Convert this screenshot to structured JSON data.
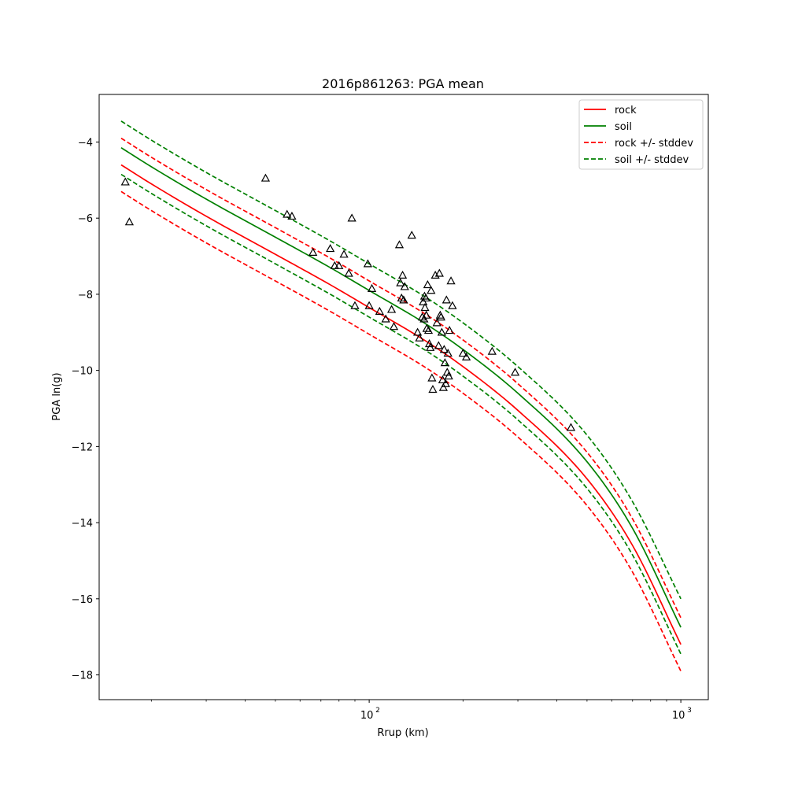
{
  "chart_data": {
    "type": "scatter",
    "title": "2016p861263: PGA mean",
    "xlabel": "Rrup (km)",
    "ylabel": "PGA ln(g)",
    "xscale": "log",
    "xlim": [
      13.6,
      1225
    ],
    "ylim": [
      -18.65,
      -2.75
    ],
    "yticks": [
      -4,
      -6,
      -8,
      -10,
      -12,
      -14,
      -16,
      -18
    ],
    "yticklabels": [
      "−4",
      "−6",
      "−8",
      "−10",
      "−12",
      "−14",
      "−16",
      "−18"
    ],
    "xticks": [
      100,
      1000
    ],
    "xticklabels": [
      "10",
      "10"
    ],
    "xtick_exponents": [
      "2",
      "3"
    ],
    "grid": false,
    "legend_position": "top-right",
    "series": [
      {
        "name": "rock",
        "color": "#ff0000",
        "dash": false,
        "x": [
          16,
          20,
          30,
          50,
          75,
          100,
          150,
          200,
          300,
          500,
          700,
          1000
        ],
        "y": [
          -4.6,
          -5.1,
          -5.95,
          -6.95,
          -7.75,
          -8.35,
          -9.2,
          -9.9,
          -11.05,
          -12.85,
          -14.6,
          -17.2
        ]
      },
      {
        "name": "soil",
        "color": "#008000",
        "dash": false,
        "x": [
          16,
          20,
          30,
          50,
          75,
          100,
          150,
          200,
          300,
          500,
          700,
          1000
        ],
        "y": [
          -4.15,
          -4.65,
          -5.5,
          -6.5,
          -7.3,
          -7.9,
          -8.75,
          -9.45,
          -10.6,
          -12.4,
          -14.15,
          -16.75
        ]
      },
      {
        "name": "rock +/- stddev",
        "color": "#ff0000",
        "dash": true,
        "x": [
          16,
          20,
          30,
          50,
          75,
          100,
          150,
          200,
          300,
          500,
          700,
          1000
        ],
        "y": [
          -3.9,
          -4.4,
          -5.25,
          -6.25,
          -7.05,
          -7.65,
          -8.5,
          -9.2,
          -10.35,
          -12.15,
          -13.9,
          -16.5
        ]
      },
      {
        "name": "",
        "color": "#ff0000",
        "dash": true,
        "x": [
          16,
          20,
          30,
          50,
          75,
          100,
          150,
          200,
          300,
          500,
          700,
          1000
        ],
        "y": [
          -5.3,
          -5.8,
          -6.65,
          -7.65,
          -8.45,
          -9.05,
          -9.9,
          -10.6,
          -11.75,
          -13.55,
          -15.3,
          -17.9
        ]
      },
      {
        "name": "soil +/- stddev",
        "color": "#008000",
        "dash": true,
        "x": [
          16,
          20,
          30,
          50,
          75,
          100,
          150,
          200,
          300,
          500,
          700,
          1000
        ],
        "y": [
          -3.45,
          -3.95,
          -4.8,
          -5.8,
          -6.6,
          -7.2,
          -8.05,
          -8.75,
          -9.9,
          -11.7,
          -13.45,
          -16.0
        ]
      },
      {
        "name": "",
        "color": "#008000",
        "dash": true,
        "x": [
          16,
          20,
          30,
          50,
          75,
          100,
          150,
          200,
          300,
          500,
          700,
          1000
        ],
        "y": [
          -4.85,
          -5.35,
          -6.2,
          -7.2,
          -8.0,
          -8.6,
          -9.45,
          -10.15,
          -11.3,
          -13.1,
          -14.85,
          -17.45
        ]
      }
    ],
    "observations": {
      "marker": "triangle",
      "color": "#000000",
      "points": [
        [
          16.5,
          -5.05
        ],
        [
          17.0,
          -6.1
        ],
        [
          46.5,
          -4.95
        ],
        [
          54.5,
          -5.9
        ],
        [
          56.5,
          -5.95
        ],
        [
          66,
          -6.9
        ],
        [
          75,
          -6.8
        ],
        [
          77.5,
          -7.25
        ],
        [
          80,
          -7.25
        ],
        [
          83,
          -6.95
        ],
        [
          86,
          -7.45
        ],
        [
          88,
          -6.0
        ],
        [
          90,
          -8.3
        ],
        [
          99,
          -7.2
        ],
        [
          100,
          -8.3
        ],
        [
          102,
          -7.85
        ],
        [
          108,
          -8.45
        ],
        [
          113,
          -8.65
        ],
        [
          118,
          -8.4
        ],
        [
          120,
          -8.85
        ],
        [
          125,
          -6.7
        ],
        [
          126,
          -7.7
        ],
        [
          127,
          -8.1
        ],
        [
          128,
          -7.5
        ],
        [
          129,
          -8.15
        ],
        [
          130,
          -7.8
        ],
        [
          137,
          -6.45
        ],
        [
          143,
          -9.0
        ],
        [
          145,
          -9.15
        ],
        [
          148,
          -8.6
        ],
        [
          149,
          -8.2
        ],
        [
          150,
          -8.65
        ],
        [
          150.5,
          -8.05
        ],
        [
          151,
          -8.35
        ],
        [
          152,
          -8.1
        ],
        [
          152.5,
          -8.55
        ],
        [
          153,
          -8.9
        ],
        [
          154,
          -7.75
        ],
        [
          155,
          -8.95
        ],
        [
          156,
          -9.3
        ],
        [
          157,
          -9.4
        ],
        [
          158,
          -7.9
        ],
        [
          159,
          -10.2
        ],
        [
          160,
          -10.5
        ],
        [
          163,
          -7.5
        ],
        [
          165,
          -8.75
        ],
        [
          167,
          -9.35
        ],
        [
          168,
          -7.45
        ],
        [
          169,
          -8.55
        ],
        [
          170,
          -8.6
        ],
        [
          171,
          -9.0
        ],
        [
          172,
          -10.25
        ],
        [
          173,
          -10.45
        ],
        [
          174,
          -9.45
        ],
        [
          175,
          -9.8
        ],
        [
          176,
          -10.35
        ],
        [
          177,
          -8.15
        ],
        [
          178,
          -10.05
        ],
        [
          179,
          -9.55
        ],
        [
          180,
          -10.15
        ],
        [
          181,
          -8.95
        ],
        [
          183,
          -7.65
        ],
        [
          185,
          -8.3
        ],
        [
          200,
          -9.55
        ],
        [
          205,
          -9.65
        ],
        [
          248,
          -9.5
        ],
        [
          294,
          -10.05
        ],
        [
          444,
          -11.5
        ]
      ]
    }
  }
}
